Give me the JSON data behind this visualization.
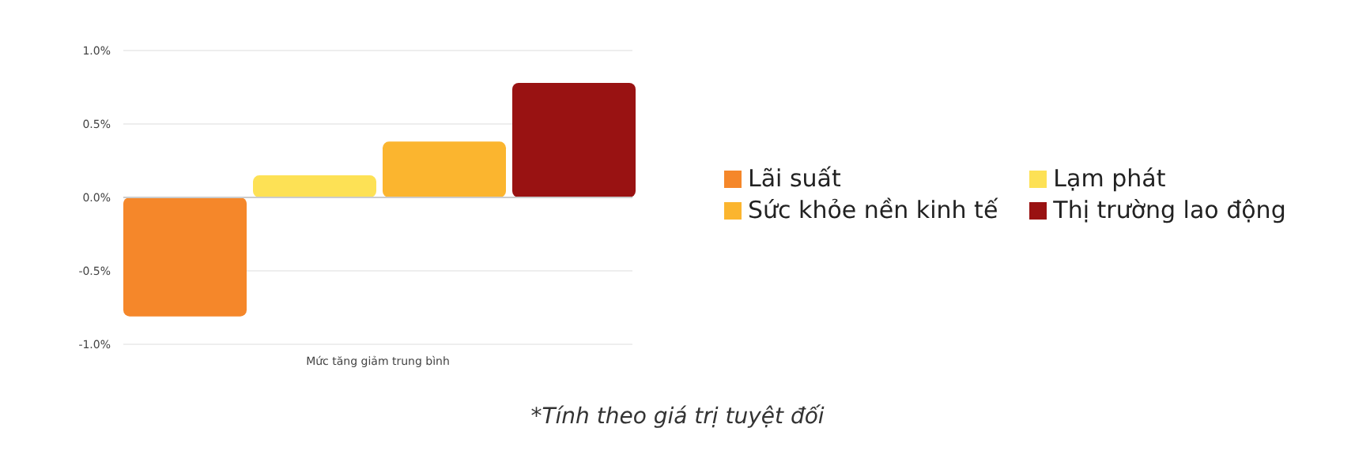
{
  "chart_data": {
    "type": "bar",
    "categories": [
      "Mức tăng giảm trung bình"
    ],
    "series": [
      {
        "name": "Lãi suất",
        "color": "#f5872a",
        "values": [
          -0.81
        ]
      },
      {
        "name": "Lạm phát",
        "color": "#fde155",
        "values": [
          0.15
        ]
      },
      {
        "name": "Sức khỏe nền kinh tế",
        "color": "#fbb52f",
        "values": [
          0.38
        ]
      },
      {
        "name": "Thị trường lao động",
        "color": "#991212",
        "values": [
          0.78
        ]
      }
    ],
    "ylim": [
      -1.0,
      1.0
    ],
    "yticks": [
      {
        "value": -1.0,
        "label": "-1.0%"
      },
      {
        "value": -0.5,
        "label": "-0.5%"
      },
      {
        "value": 0,
        "label": "0.0%"
      },
      {
        "value": 0.5,
        "label": "0.5%"
      },
      {
        "value": 1.0,
        "label": "1.0%"
      }
    ],
    "grid": "y",
    "legend": "right",
    "annotations": [
      "*Tính theo giá trị tuyệt đối"
    ]
  }
}
